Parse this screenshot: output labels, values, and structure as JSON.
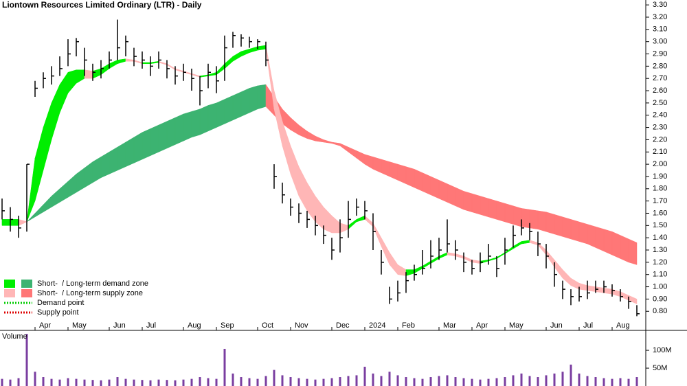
{
  "chart_data": [
    {
      "type": "ohlc",
      "title": "Liontown Resources Limited Ordinary (LTR) - Daily",
      "categories": [
        null,
        null,
        null,
        null,
        "Apr",
        null,
        null,
        null,
        "May",
        null,
        null,
        null,
        null,
        "Jun",
        null,
        null,
        null,
        "Jul",
        null,
        null,
        null,
        null,
        "Aug",
        null,
        null,
        null,
        "Sep",
        null,
        null,
        null,
        null,
        "Oct",
        null,
        null,
        null,
        "Nov",
        null,
        null,
        null,
        null,
        "Dec",
        null,
        null,
        null,
        "2024",
        null,
        null,
        null,
        "Feb",
        null,
        null,
        null,
        null,
        "Mar",
        null,
        null,
        null,
        "Apr",
        null,
        null,
        null,
        "May",
        null,
        null,
        null,
        null,
        "Jun",
        null,
        null,
        null,
        "Jul",
        null,
        null,
        null,
        "Aug",
        null,
        null,
        null
      ],
      "high": [
        1.72,
        1.65,
        1.58,
        2.0,
        2.68,
        2.75,
        2.8,
        2.88,
        3.02,
        3.03,
        2.95,
        2.82,
        2.85,
        2.92,
        3.18,
        3.05,
        2.95,
        2.92,
        2.88,
        2.92,
        2.85,
        2.8,
        2.82,
        2.78,
        2.72,
        2.82,
        2.8,
        3.05,
        3.08,
        3.06,
        3.04,
        3.02,
        3.0,
        2.0,
        1.85,
        1.72,
        1.68,
        1.62,
        1.58,
        1.5,
        1.4,
        1.55,
        1.7,
        1.72,
        1.7,
        1.6,
        1.3,
        1.0,
        1.05,
        1.12,
        1.18,
        1.3,
        1.38,
        1.4,
        1.55,
        1.38,
        1.28,
        1.22,
        1.28,
        1.35,
        1.25,
        1.4,
        1.5,
        1.55,
        1.52,
        1.45,
        1.35,
        1.2,
        1.05,
        0.98,
        1.0,
        1.05,
        1.05,
        1.05,
        1.02,
        0.98,
        0.92,
        0.85
      ],
      "low": [
        1.55,
        1.45,
        1.4,
        1.45,
        2.55,
        2.62,
        2.65,
        2.72,
        2.8,
        2.88,
        2.72,
        2.68,
        2.7,
        2.78,
        2.85,
        2.88,
        2.8,
        2.78,
        2.72,
        2.78,
        2.7,
        2.65,
        2.68,
        2.6,
        2.48,
        2.62,
        2.58,
        2.68,
        2.95,
        2.96,
        2.95,
        2.94,
        2.8,
        1.8,
        1.68,
        1.58,
        1.52,
        1.48,
        1.42,
        1.35,
        1.22,
        1.28,
        1.4,
        1.58,
        1.55,
        1.3,
        1.1,
        0.86,
        0.88,
        0.95,
        1.05,
        1.1,
        1.15,
        1.22,
        1.28,
        1.22,
        1.12,
        1.1,
        1.12,
        1.18,
        1.08,
        1.18,
        1.32,
        1.42,
        1.38,
        1.25,
        1.15,
        1.0,
        0.9,
        0.85,
        0.88,
        0.9,
        0.95,
        0.95,
        0.92,
        0.88,
        0.82,
        0.76
      ],
      "close": [
        1.62,
        1.55,
        1.48,
        2.0,
        2.62,
        2.7,
        2.72,
        2.78,
        2.9,
        3.0,
        2.85,
        2.75,
        2.78,
        2.85,
        2.95,
        3.0,
        2.88,
        2.85,
        2.8,
        2.85,
        2.78,
        2.72,
        2.75,
        2.7,
        2.6,
        2.75,
        2.68,
        2.95,
        3.05,
        3.03,
        3.0,
        3.0,
        2.85,
        1.9,
        1.75,
        1.65,
        1.6,
        1.55,
        1.5,
        1.42,
        1.3,
        1.4,
        1.55,
        1.65,
        1.62,
        1.45,
        1.2,
        0.9,
        0.95,
        1.05,
        1.1,
        1.15,
        1.25,
        1.3,
        1.35,
        1.3,
        1.2,
        1.15,
        1.2,
        1.25,
        1.15,
        1.3,
        1.42,
        1.48,
        1.45,
        1.35,
        1.25,
        1.1,
        0.98,
        0.92,
        0.92,
        0.95,
        0.98,
        1.0,
        0.97,
        0.92,
        0.88,
        0.78
      ],
      "color": "#000000",
      "zones": {
        "short_upper": [
          1.55,
          1.55,
          1.55,
          1.53,
          2.05,
          2.3,
          2.5,
          2.65,
          2.75,
          2.77,
          2.77,
          2.76,
          2.78,
          2.82,
          2.85,
          2.86,
          2.85,
          2.83,
          2.83,
          2.84,
          2.82,
          2.78,
          2.76,
          2.74,
          2.72,
          2.73,
          2.75,
          2.82,
          2.88,
          2.92,
          2.94,
          2.96,
          2.97,
          2.6,
          2.35,
          2.15,
          1.98,
          1.85,
          1.74,
          1.65,
          1.58,
          1.52,
          1.5,
          1.55,
          1.58,
          1.52,
          1.4,
          1.28,
          1.18,
          1.14,
          1.14,
          1.17,
          1.21,
          1.25,
          1.28,
          1.27,
          1.25,
          1.22,
          1.21,
          1.22,
          1.24,
          1.28,
          1.33,
          1.37,
          1.38,
          1.36,
          1.3,
          1.22,
          1.14,
          1.07,
          1.03,
          1.01,
          1.0,
          0.99,
          0.98,
          0.96,
          0.93,
          0.9
        ],
        "short_lower": [
          1.5,
          1.5,
          1.5,
          1.53,
          1.7,
          1.95,
          2.2,
          2.42,
          2.58,
          2.66,
          2.7,
          2.7,
          2.73,
          2.78,
          2.82,
          2.84,
          2.84,
          2.82,
          2.82,
          2.83,
          2.81,
          2.77,
          2.75,
          2.73,
          2.71,
          2.72,
          2.73,
          2.78,
          2.84,
          2.88,
          2.91,
          2.93,
          2.94,
          2.45,
          2.15,
          1.92,
          1.74,
          1.62,
          1.53,
          1.47,
          1.44,
          1.44,
          1.47,
          1.53,
          1.55,
          1.49,
          1.33,
          1.18,
          1.1,
          1.09,
          1.11,
          1.15,
          1.19,
          1.23,
          1.26,
          1.25,
          1.23,
          1.2,
          1.19,
          1.21,
          1.23,
          1.27,
          1.31,
          1.35,
          1.36,
          1.34,
          1.26,
          1.16,
          1.07,
          1.01,
          0.98,
          0.97,
          0.96,
          0.95,
          0.94,
          0.92,
          0.89,
          0.86
        ],
        "long_upper": [
          1.55,
          1.55,
          1.55,
          1.53,
          1.6,
          1.67,
          1.74,
          1.8,
          1.86,
          1.92,
          1.97,
          2.02,
          2.06,
          2.1,
          2.14,
          2.18,
          2.22,
          2.26,
          2.29,
          2.32,
          2.35,
          2.38,
          2.41,
          2.43,
          2.45,
          2.48,
          2.5,
          2.53,
          2.56,
          2.59,
          2.62,
          2.64,
          2.65,
          2.55,
          2.45,
          2.38,
          2.32,
          2.27,
          2.23,
          2.2,
          2.18,
          2.17,
          2.14,
          2.11,
          2.08,
          2.06,
          2.04,
          2.02,
          2.0,
          1.98,
          1.96,
          1.93,
          1.9,
          1.87,
          1.84,
          1.81,
          1.78,
          1.76,
          1.74,
          1.72,
          1.7,
          1.68,
          1.66,
          1.64,
          1.63,
          1.62,
          1.61,
          1.59,
          1.57,
          1.55,
          1.53,
          1.51,
          1.49,
          1.47,
          1.45,
          1.42,
          1.39,
          1.36
        ],
        "long_lower": [
          1.5,
          1.5,
          1.5,
          1.53,
          1.57,
          1.61,
          1.65,
          1.69,
          1.73,
          1.77,
          1.81,
          1.85,
          1.89,
          1.92,
          1.95,
          1.98,
          2.01,
          2.04,
          2.07,
          2.1,
          2.13,
          2.16,
          2.19,
          2.22,
          2.24,
          2.27,
          2.3,
          2.33,
          2.36,
          2.39,
          2.42,
          2.45,
          2.47,
          2.4,
          2.33,
          2.28,
          2.24,
          2.21,
          2.19,
          2.18,
          2.17,
          2.15,
          2.1,
          2.05,
          2.0,
          1.96,
          1.93,
          1.9,
          1.87,
          1.84,
          1.81,
          1.78,
          1.75,
          1.72,
          1.69,
          1.66,
          1.63,
          1.61,
          1.59,
          1.57,
          1.55,
          1.53,
          1.51,
          1.49,
          1.48,
          1.47,
          1.45,
          1.43,
          1.41,
          1.39,
          1.37,
          1.35,
          1.32,
          1.29,
          1.26,
          1.23,
          1.2,
          1.18
        ]
      },
      "short_demand_color": "#00ee00",
      "long_demand_color": "#3cb371",
      "short_supply_color": "#ffb6b6",
      "long_supply_color": "#ff7777",
      "demand_point_color": "#00cc00",
      "supply_point_color": "#dd0000",
      "legend": {
        "demand_zone": [
          "Short-",
          "/ Long-term demand zone"
        ],
        "supply_zone": [
          "Short-",
          "/ Long-term supply zone"
        ],
        "demand_point": "Demand point",
        "supply_point": "Supply point"
      },
      "ylim": [
        0.65,
        3.34
      ],
      "yticks": [
        {
          "value": 0.8,
          "label": "0.80"
        },
        {
          "value": 0.9,
          "label": "0.90"
        },
        {
          "value": 1.0,
          "label": "1.00"
        },
        {
          "value": 1.1,
          "label": "1.10"
        },
        {
          "value": 1.2,
          "label": "1.20"
        },
        {
          "value": 1.3,
          "label": "1.30"
        },
        {
          "value": 1.4,
          "label": "1.40"
        },
        {
          "value": 1.5,
          "label": "1.50"
        },
        {
          "value": 1.6,
          "label": "1.60"
        },
        {
          "value": 1.7,
          "label": "1.70"
        },
        {
          "value": 1.8,
          "label": "1.80"
        },
        {
          "value": 1.9,
          "label": "1.90"
        },
        {
          "value": 2.0,
          "label": "2.00"
        },
        {
          "value": 2.1,
          "label": "2.10"
        },
        {
          "value": 2.2,
          "label": "2.20"
        },
        {
          "value": 2.3,
          "label": "2.30"
        },
        {
          "value": 2.4,
          "label": "2.40"
        },
        {
          "value": 2.5,
          "label": "2.50"
        },
        {
          "value": 2.6,
          "label": "2.60"
        },
        {
          "value": 2.7,
          "label": "2.70"
        },
        {
          "value": 2.8,
          "label": "2.80"
        },
        {
          "value": 2.9,
          "label": "2.90"
        },
        {
          "value": 3.0,
          "label": "3.00"
        },
        {
          "value": 3.1,
          "label": "3.10"
        },
        {
          "value": 3.2,
          "label": "3.20"
        },
        {
          "value": 3.3,
          "label": "3.30"
        }
      ]
    },
    {
      "type": "bar",
      "title": "Volume",
      "values": [
        20,
        18,
        22,
        146,
        40,
        25,
        20,
        18,
        22,
        20,
        18,
        17,
        16,
        18,
        25,
        20,
        18,
        17,
        16,
        18,
        17,
        16,
        18,
        20,
        25,
        22,
        20,
        104,
        35,
        25,
        22,
        20,
        28,
        45,
        30,
        25,
        22,
        20,
        18,
        20,
        22,
        25,
        28,
        30,
        54,
        35,
        28,
        40,
        30,
        25,
        22,
        20,
        25,
        28,
        30,
        25,
        22,
        20,
        18,
        20,
        22,
        25,
        30,
        35,
        28,
        25,
        30,
        35,
        40,
        60,
        35,
        28,
        25,
        22,
        20,
        22,
        20,
        25
      ],
      "color": "#7a3ea0",
      "ylim": [
        0,
        154
      ],
      "yticks": [
        {
          "value": 50,
          "label": "50M"
        },
        {
          "value": 100,
          "label": "100M"
        }
      ]
    }
  ]
}
